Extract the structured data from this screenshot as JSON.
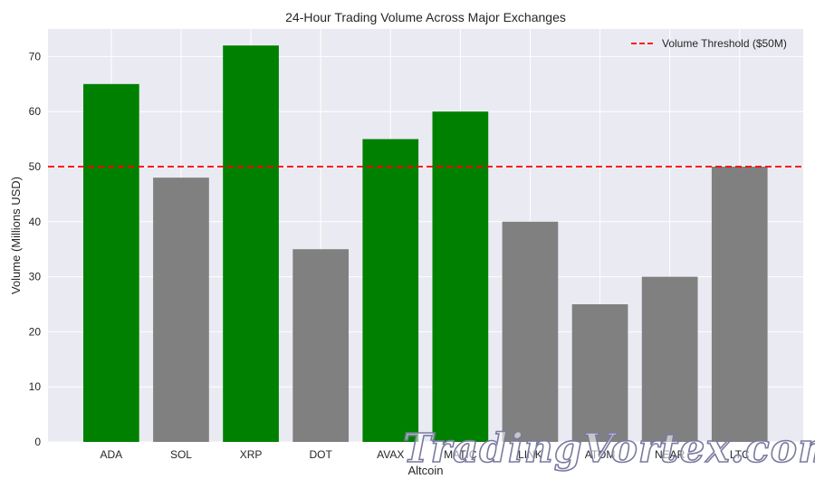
{
  "chart_data": {
    "type": "bar",
    "title": "24-Hour Trading Volume Across Major Exchanges",
    "xlabel": "Altcoin",
    "ylabel": "Volume (Millions USD)",
    "categories": [
      "ADA",
      "SOL",
      "XRP",
      "DOT",
      "AVAX",
      "MATIC",
      "LINK",
      "ATOM",
      "NEAR",
      "LTC"
    ],
    "values": [
      65,
      48,
      72,
      35,
      55,
      60,
      40,
      25,
      30,
      50
    ],
    "ylim": [
      0,
      75
    ],
    "yticks": [
      0,
      10,
      20,
      30,
      40,
      50,
      60,
      70
    ],
    "threshold": {
      "value": 50,
      "label": "Volume Threshold ($50M)",
      "color": "#ff0000",
      "style": "dashed"
    },
    "colors": {
      "above_threshold": "#008000",
      "at_or_below_threshold": "#808080",
      "plot_background": "#eaeaf2",
      "grid": "#ffffff"
    },
    "legend_position": "top-right",
    "grid": true
  },
  "watermark": "TradingVortex.com"
}
